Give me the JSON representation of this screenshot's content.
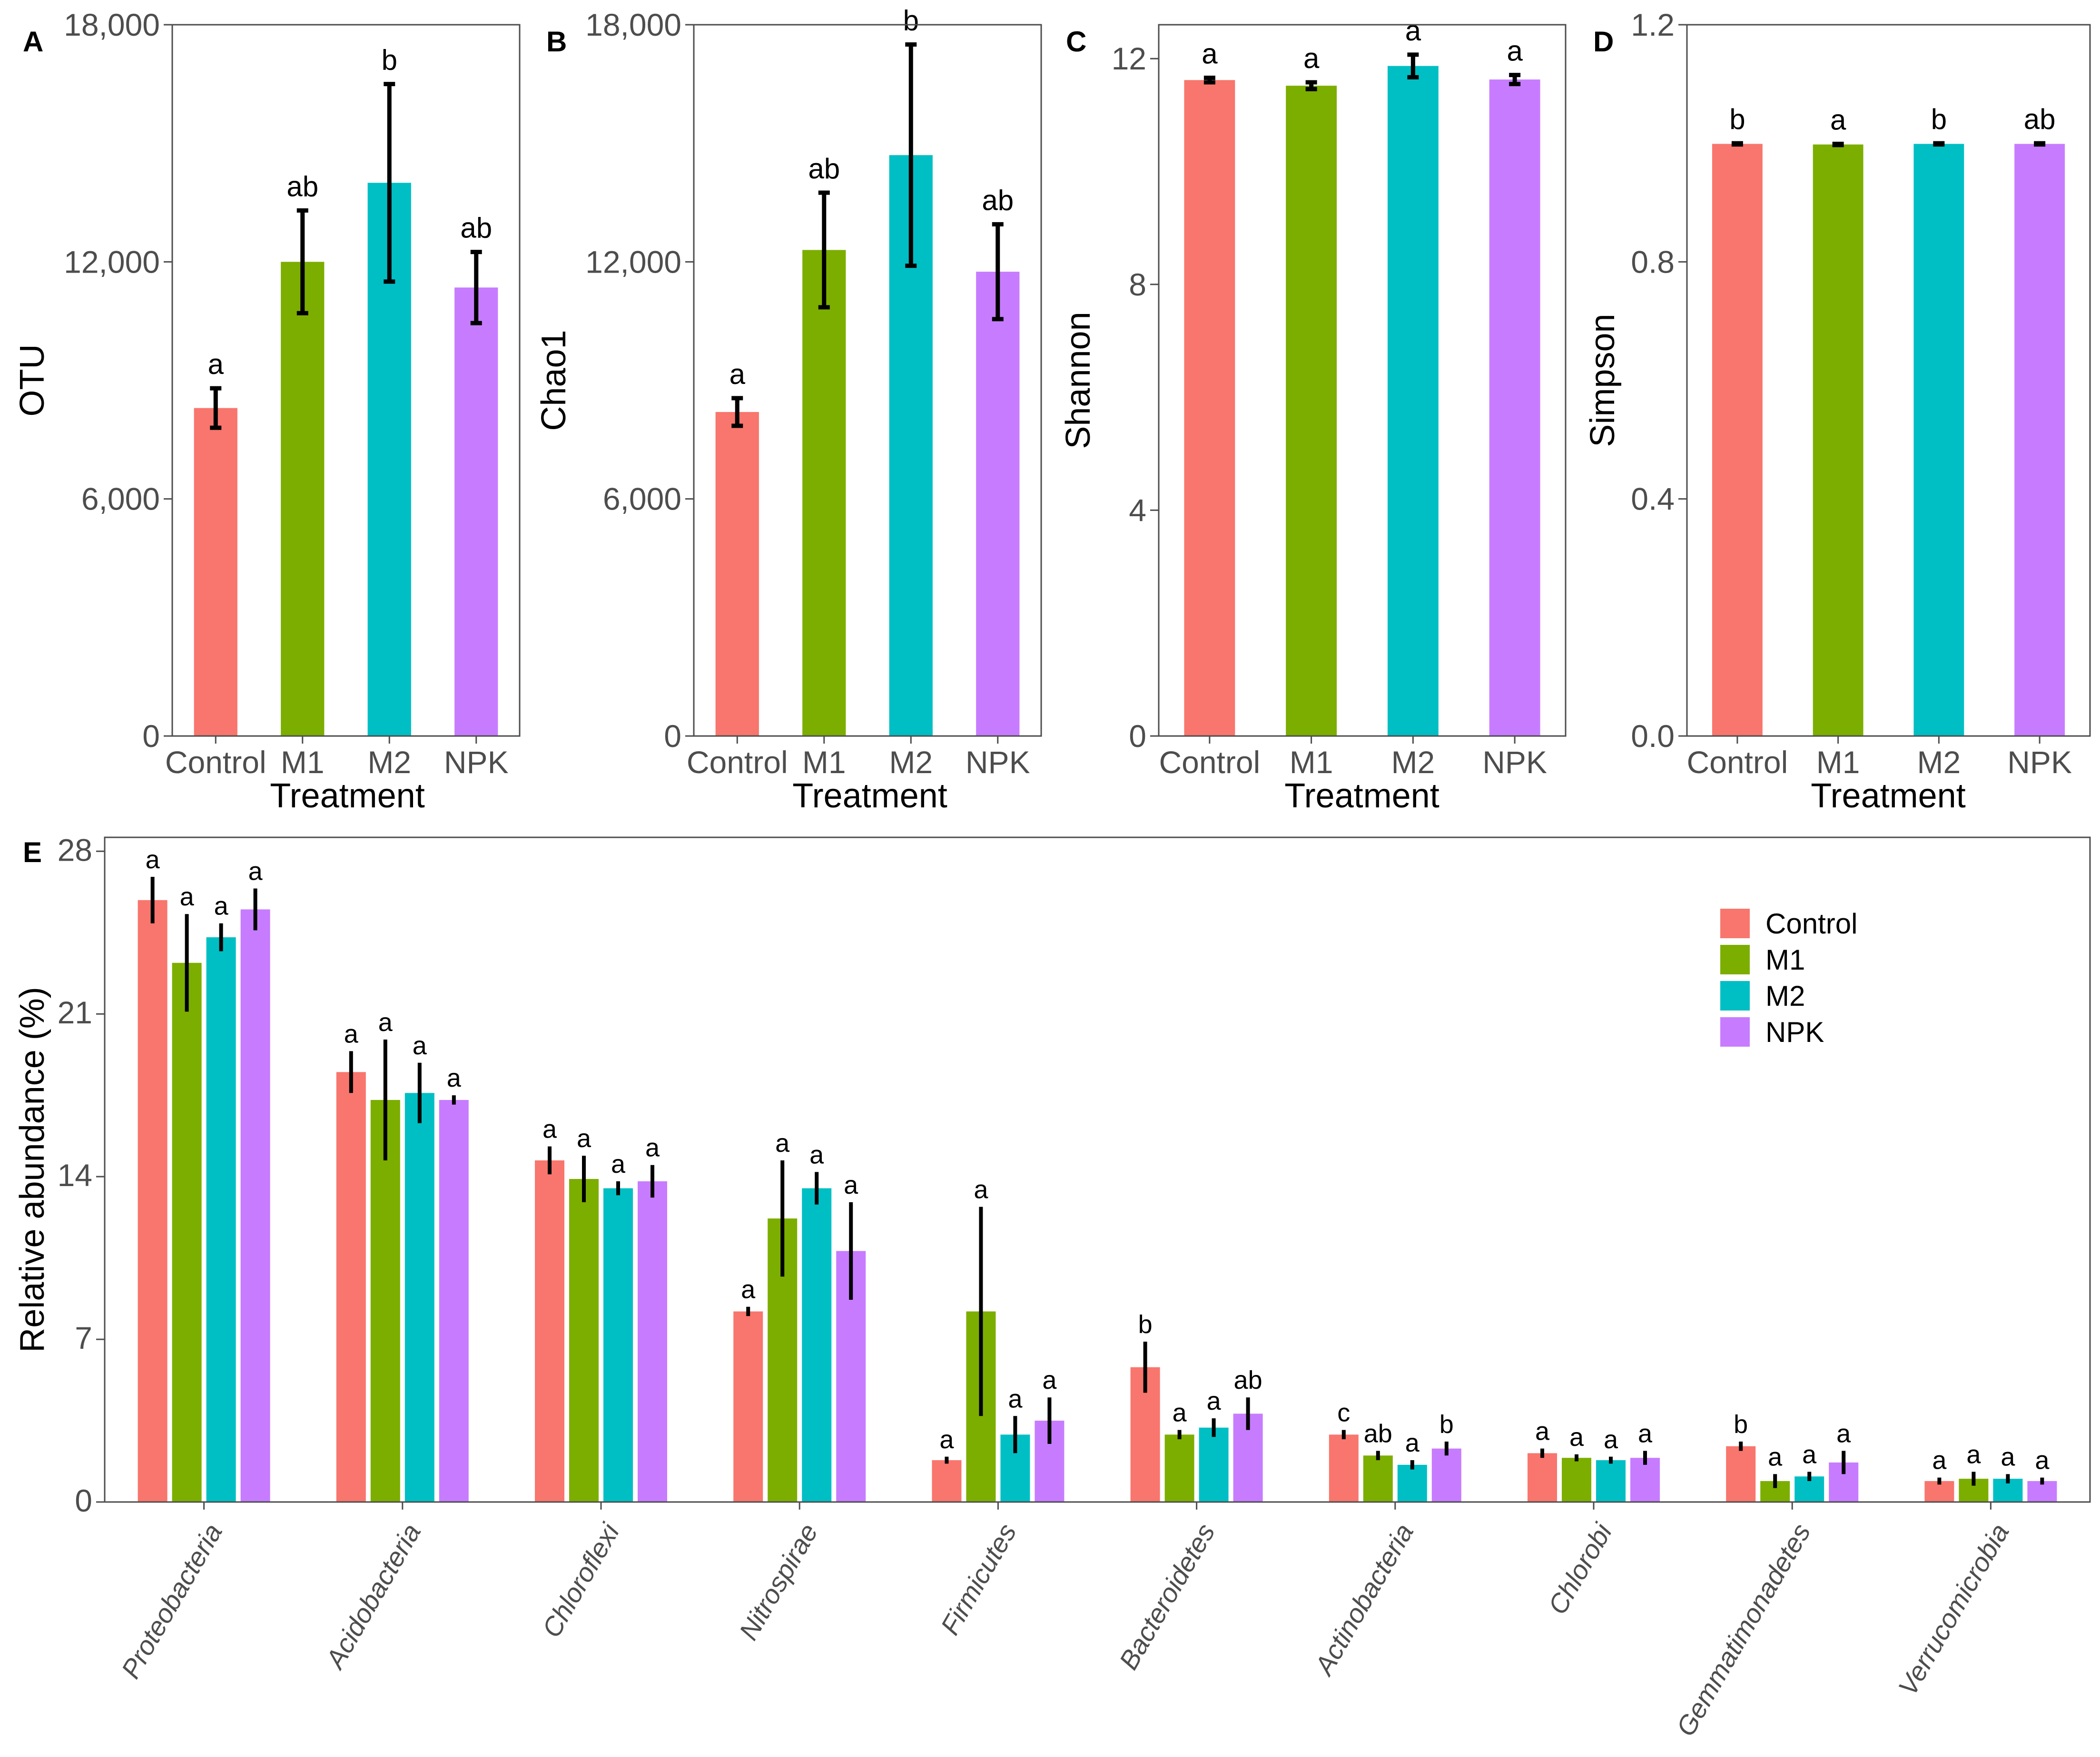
{
  "colors": {
    "Control": "#F8766D",
    "M1": "#7CAE00",
    "M2": "#00BFC4",
    "NPK": "#C77CFF"
  },
  "chart_data": [
    {
      "panel": "A",
      "type": "bar",
      "categories": [
        "Control",
        "M1",
        "M2",
        "NPK"
      ],
      "values": [
        8300,
        12000,
        14000,
        11350
      ],
      "errors": [
        500,
        1300,
        2500,
        900
      ],
      "letters": [
        "a",
        "ab",
        "b",
        "ab"
      ],
      "xlabel": "Treatment",
      "ylabel": "OTU",
      "ylim": [
        0,
        18000
      ],
      "yticks": [
        0,
        6000,
        12000,
        18000
      ],
      "yticklabels": [
        "0",
        "6,000",
        "12,000",
        "18,000"
      ]
    },
    {
      "panel": "B",
      "type": "bar",
      "categories": [
        "Control",
        "M1",
        "M2",
        "NPK"
      ],
      "values": [
        8200,
        12300,
        14700,
        11750
      ],
      "errors": [
        350,
        1450,
        2800,
        1200
      ],
      "letters": [
        "a",
        "ab",
        "b",
        "ab"
      ],
      "xlabel": "Treatment",
      "ylabel": "Chao1",
      "ylim": [
        0,
        18000
      ],
      "yticks": [
        0,
        6000,
        12000,
        18000
      ],
      "yticklabels": [
        "0",
        "6,000",
        "12,000",
        "18,000"
      ]
    },
    {
      "panel": "C",
      "type": "bar",
      "categories": [
        "Control",
        "M1",
        "M2",
        "NPK"
      ],
      "values": [
        11.62,
        11.52,
        11.87,
        11.63
      ],
      "errors": [
        0.04,
        0.06,
        0.2,
        0.08
      ],
      "letters": [
        "a",
        "a",
        "a",
        "a"
      ],
      "xlabel": "Treatment",
      "ylabel": "Shannon",
      "ylim": [
        0,
        12.6
      ],
      "yticks": [
        0,
        4,
        8,
        12
      ],
      "yticklabels": [
        "0",
        "4",
        "8",
        "12"
      ]
    },
    {
      "panel": "D",
      "type": "bar",
      "categories": [
        "Control",
        "M1",
        "M2",
        "NPK"
      ],
      "values": [
        0.999,
        0.998,
        0.999,
        0.999
      ],
      "errors": [
        0.001,
        0.001,
        0.001,
        0.001
      ],
      "letters": [
        "b",
        "a",
        "b",
        "ab"
      ],
      "xlabel": "Treatment",
      "ylabel": "Simpson",
      "ylim": [
        0,
        1.2
      ],
      "yticks": [
        0.0,
        0.4,
        0.8,
        1.2
      ],
      "yticklabels": [
        "0.0",
        "0.4",
        "0.8",
        "1.2"
      ]
    },
    {
      "panel": "E",
      "type": "bar",
      "categories": [
        "Proteobacteria",
        "Acidobacteria",
        "Chloroflexi",
        "Nitrospirae",
        "Firmicutes",
        "Bacteroidetes",
        "Actinobacteria",
        "Chlorobi",
        "Gemmatimonadetes",
        "Verrucomicrobia"
      ],
      "series": [
        {
          "name": "Control",
          "values": [
            25.9,
            18.5,
            14.7,
            8.2,
            1.8,
            5.8,
            2.9,
            2.1,
            2.4,
            0.9
          ],
          "errors": [
            1.0,
            0.9,
            0.6,
            0.2,
            0.15,
            1.1,
            0.2,
            0.2,
            0.2,
            0.15
          ],
          "letters": [
            "a",
            "a",
            "a",
            "a",
            "a",
            "b",
            "c",
            "a",
            "b",
            "a"
          ]
        },
        {
          "name": "M1",
          "values": [
            23.2,
            17.3,
            13.9,
            12.2,
            8.2,
            2.9,
            2.0,
            1.9,
            0.9,
            1.0
          ],
          "errors": [
            2.1,
            2.6,
            1.0,
            2.5,
            4.5,
            0.2,
            0.2,
            0.15,
            0.3,
            0.3
          ],
          "letters": [
            "a",
            "a",
            "a",
            "a",
            "a",
            "a",
            "ab",
            "a",
            "a",
            "a"
          ]
        },
        {
          "name": "M2",
          "values": [
            24.3,
            17.6,
            13.5,
            13.5,
            2.9,
            3.2,
            1.6,
            1.8,
            1.1,
            1.0
          ],
          "errors": [
            0.6,
            1.3,
            0.3,
            0.7,
            0.8,
            0.4,
            0.2,
            0.15,
            0.2,
            0.2
          ],
          "letters": [
            "a",
            "a",
            "a",
            "a",
            "a",
            "a",
            "a",
            "a",
            "a",
            "a"
          ]
        },
        {
          "name": "NPK",
          "values": [
            25.5,
            17.3,
            13.8,
            10.8,
            3.5,
            3.8,
            2.3,
            1.9,
            1.7,
            0.9
          ],
          "errors": [
            0.9,
            0.2,
            0.7,
            2.1,
            1.0,
            0.7,
            0.3,
            0.3,
            0.5,
            0.15
          ],
          "letters": [
            "a",
            "a",
            "a",
            "a",
            "a",
            "ab",
            "b",
            "a",
            "a",
            "a"
          ]
        }
      ],
      "xlabel": "",
      "ylabel": "Relative abundance (%)",
      "ylim": [
        0,
        28.6
      ],
      "yticks": [
        0,
        7,
        14,
        21,
        28
      ],
      "yticklabels": [
        "0",
        "7",
        "14",
        "21",
        "28"
      ],
      "legend": {
        "position": "top-right",
        "entries": [
          "Control",
          "M1",
          "M2",
          "NPK"
        ]
      }
    }
  ]
}
